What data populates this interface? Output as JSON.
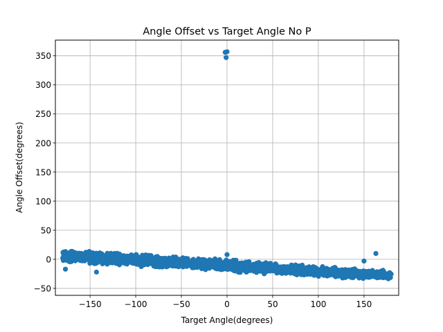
{
  "chart_data": {
    "type": "scatter",
    "title": "Angle Offset vs Target Angle No P",
    "xlabel": "Target Angle(degrees)",
    "ylabel": "Angle Offset(degrees)",
    "xlim": [
      -188,
      188
    ],
    "ylim": [
      -62,
      377
    ],
    "xticks": [
      -150,
      -100,
      -50,
      0,
      50,
      100,
      150
    ],
    "xtick_labels": [
      "−150",
      "−100",
      "−50",
      "0",
      "50",
      "100",
      "150"
    ],
    "yticks": [
      -50,
      0,
      50,
      100,
      150,
      200,
      250,
      300,
      350
    ],
    "ytick_labels": [
      "−50",
      "0",
      "50",
      "100",
      "150",
      "200",
      "250",
      "300",
      "350"
    ],
    "grid": true,
    "marker_color": "#1f77b4",
    "trend": {
      "x_range": [
        -180,
        180
      ],
      "y_at_start": 6,
      "y_at_end": -28,
      "spread_at_start": 28,
      "spread_at_end": 20
    },
    "outliers": [
      {
        "x": -2,
        "y": 356
      },
      {
        "x": 0,
        "y": 357
      },
      {
        "x": -1,
        "y": 347
      },
      {
        "x": 163,
        "y": 10
      },
      {
        "x": 150,
        "y": -3
      },
      {
        "x": -143,
        "y": -22
      },
      {
        "x": -177,
        "y": -17
      },
      {
        "x": 0,
        "y": 8
      }
    ]
  }
}
